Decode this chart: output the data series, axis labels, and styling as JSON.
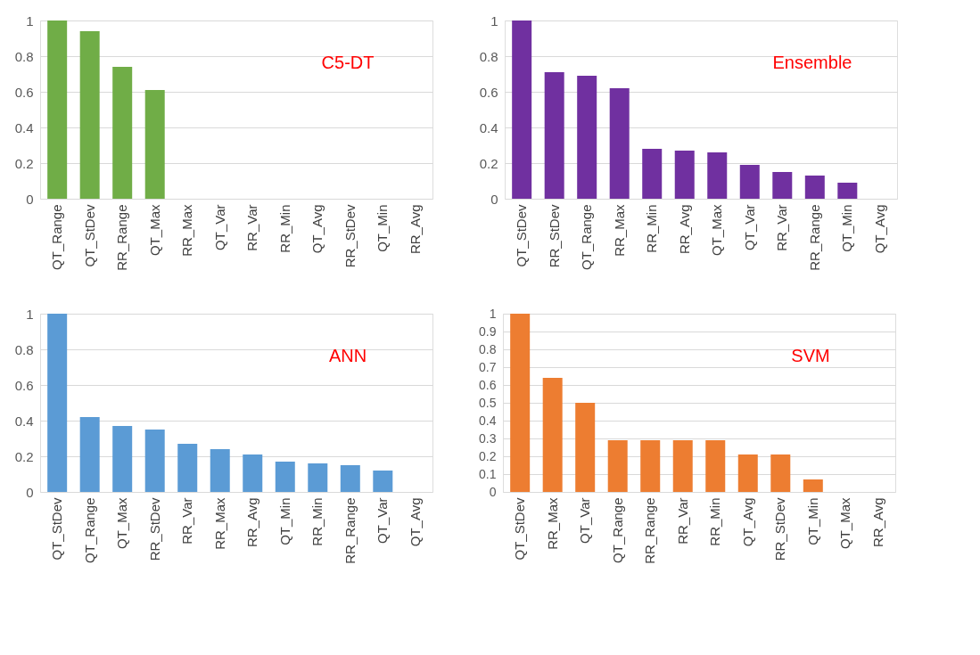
{
  "chart_data": [
    {
      "type": "bar",
      "title": "C5-DT",
      "categories": [
        "QT_Range",
        "QT_StDev",
        "RR_Range",
        "QT_Max",
        "RR_Max",
        "QT_Var",
        "RR_Var",
        "RR_Min",
        "QT_Avg",
        "RR_StDev",
        "QT_Min",
        "RR_Avg"
      ],
      "values": [
        1,
        0.94,
        0.74,
        0.61,
        0,
        0,
        0,
        0,
        0,
        0,
        0,
        0
      ],
      "color": "#70ad47",
      "ylim": [
        0,
        1
      ],
      "yticks": [
        0,
        0.2,
        0.4,
        0.6,
        0.8,
        1
      ],
      "grid": "y"
    },
    {
      "type": "bar",
      "title": "Ensemble",
      "categories": [
        "QT_StDev",
        "RR_StDev",
        "QT_Range",
        "RR_Max",
        "RR_Min",
        "RR_Avg",
        "QT_Max",
        "QT_Var",
        "RR_Var",
        "RR_Range",
        "QT_Min",
        "QT_Avg"
      ],
      "values": [
        1,
        0.71,
        0.69,
        0.62,
        0.28,
        0.27,
        0.26,
        0.19,
        0.15,
        0.13,
        0.09,
        0
      ],
      "color": "#7030a0",
      "ylim": [
        0,
        1
      ],
      "yticks": [
        0,
        0.2,
        0.4,
        0.6,
        0.8,
        1
      ],
      "grid": "y"
    },
    {
      "type": "bar",
      "title": "ANN",
      "categories": [
        "QT_StDev",
        "QT_Range",
        "QT_Max",
        "RR_StDev",
        "RR_Var",
        "RR_Max",
        "RR_Avg",
        "QT_Min",
        "RR_Min",
        "RR_Range",
        "QT_Var",
        "QT_Avg"
      ],
      "values": [
        1,
        0.42,
        0.37,
        0.35,
        0.27,
        0.24,
        0.21,
        0.17,
        0.16,
        0.15,
        0.12,
        0
      ],
      "color": "#5b9bd5",
      "ylim": [
        0,
        1
      ],
      "yticks": [
        0,
        0.2,
        0.4,
        0.6,
        0.8,
        1
      ],
      "grid": "y"
    },
    {
      "type": "bar",
      "title": "SVM",
      "categories": [
        "QT_StDev",
        "RR_Max",
        "QT_Var",
        "QT_Range",
        "RR_Range",
        "RR_Var",
        "RR_Min",
        "QT_Avg",
        "RR_StDev",
        "QT_Min",
        "QT_Max",
        "RR_Avg"
      ],
      "values": [
        1,
        0.64,
        0.5,
        0.29,
        0.29,
        0.29,
        0.29,
        0.21,
        0.21,
        0.07,
        0,
        0
      ],
      "color": "#ed7d31",
      "ylim": [
        0,
        1
      ],
      "yticks": [
        0,
        0.1,
        0.2,
        0.3,
        0.4,
        0.5,
        0.6,
        0.7,
        0.8,
        0.9,
        1
      ],
      "grid": "y"
    }
  ]
}
